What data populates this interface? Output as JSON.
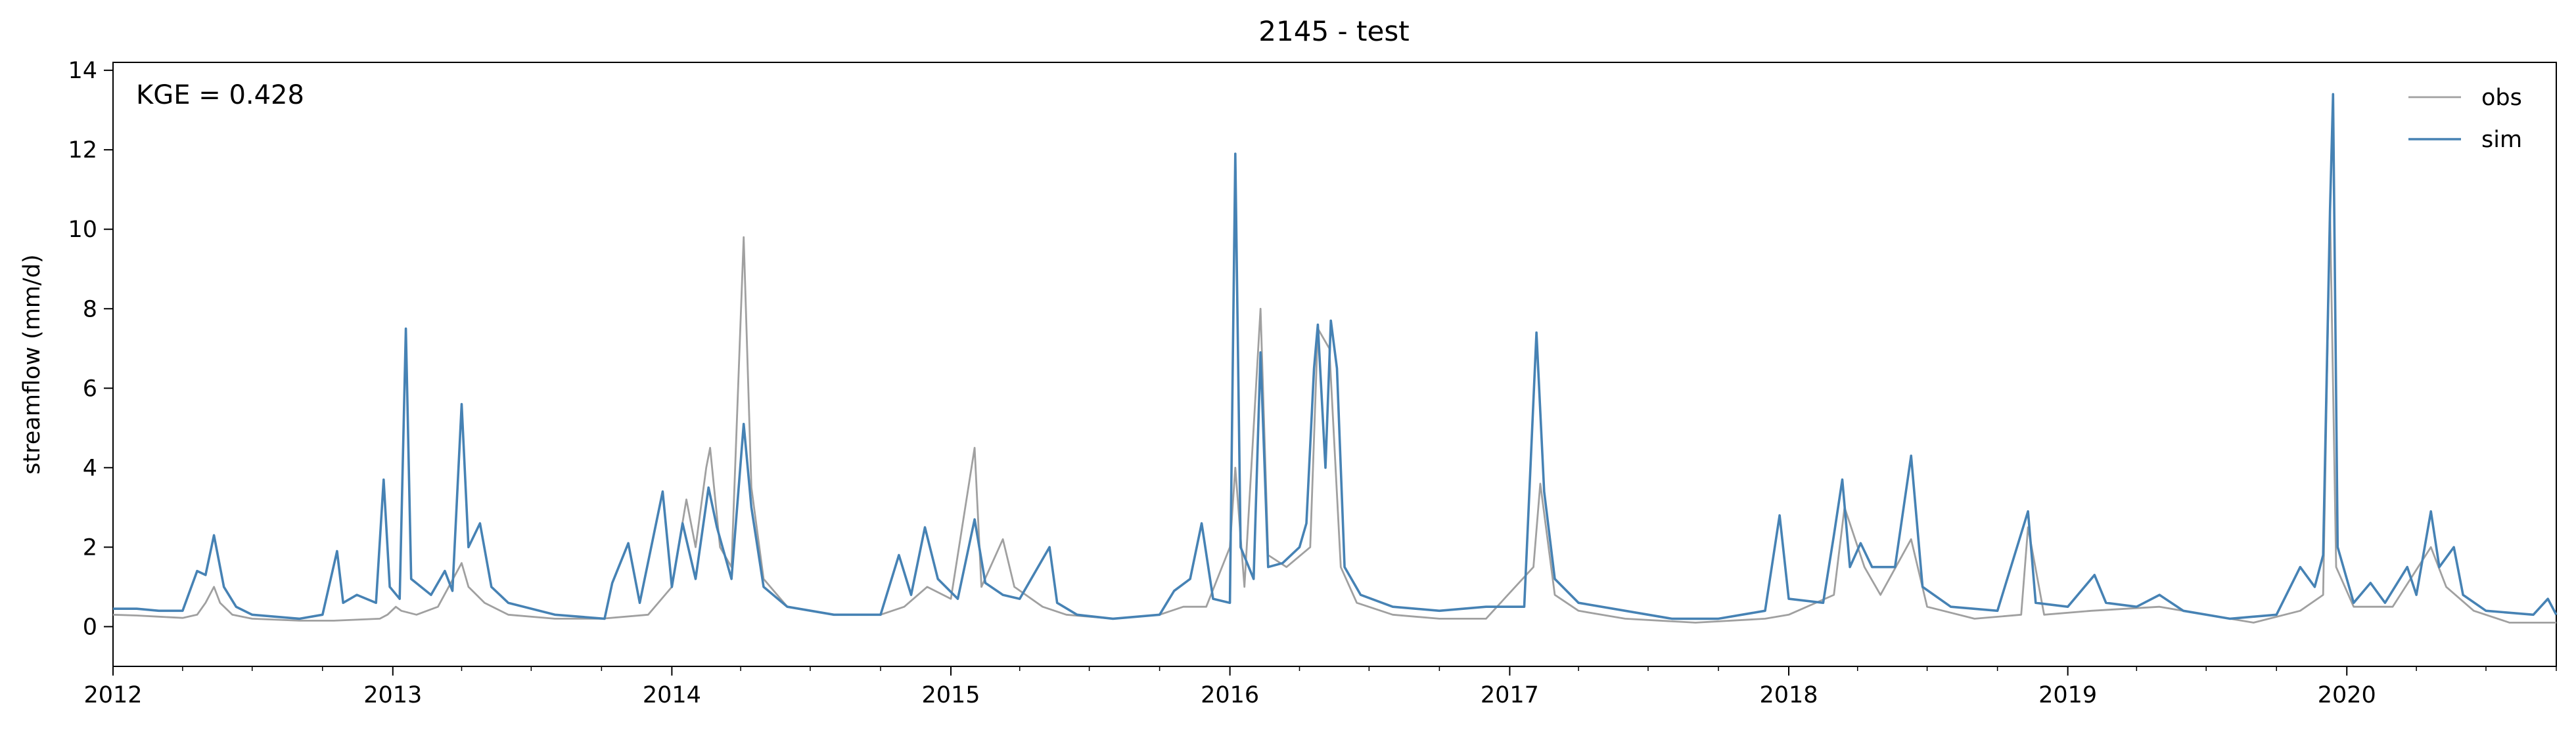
{
  "chart_data": {
    "type": "line",
    "title": "2145 - test",
    "xlabel": "",
    "ylabel": "streamflow (mm/d)",
    "annotation": "KGE = 0.428",
    "xlim": [
      "2012-01-01",
      "2020-10-01"
    ],
    "ylim": [
      -1,
      14.2
    ],
    "x_ticks": [
      "2012",
      "2013",
      "2014",
      "2015",
      "2016",
      "2017",
      "2018",
      "2019",
      "2020"
    ],
    "y_ticks": [
      "0",
      "2",
      "4",
      "6",
      "8",
      "10",
      "12",
      "14"
    ],
    "grid": false,
    "legend": {
      "location": "top-right",
      "entries": [
        "obs",
        "sim"
      ]
    },
    "series": [
      {
        "name": "obs",
        "color": "#a0a0a0",
        "points": [
          [
            "2012-01-01",
            0.3
          ],
          [
            "2012-02-01",
            0.28
          ],
          [
            "2012-03-01",
            0.25
          ],
          [
            "2012-04-01",
            0.22
          ],
          [
            "2012-04-20",
            0.3
          ],
          [
            "2012-05-01",
            0.6
          ],
          [
            "2012-05-12",
            1.0
          ],
          [
            "2012-05-20",
            0.6
          ],
          [
            "2012-06-05",
            0.3
          ],
          [
            "2012-07-01",
            0.2
          ],
          [
            "2012-09-01",
            0.15
          ],
          [
            "2012-10-15",
            0.15
          ],
          [
            "2012-12-15",
            0.2
          ],
          [
            "2012-12-25",
            0.3
          ],
          [
            "2013-01-05",
            0.5
          ],
          [
            "2013-01-12",
            0.4
          ],
          [
            "2013-02-01",
            0.3
          ],
          [
            "2013-03-01",
            0.5
          ],
          [
            "2013-04-01",
            1.6
          ],
          [
            "2013-04-10",
            1.0
          ],
          [
            "2013-05-01",
            0.6
          ],
          [
            "2013-06-01",
            0.3
          ],
          [
            "2013-08-01",
            0.2
          ],
          [
            "2013-10-01",
            0.2
          ],
          [
            "2013-12-01",
            0.3
          ],
          [
            "2014-01-01",
            1.0
          ],
          [
            "2014-01-20",
            3.2
          ],
          [
            "2014-02-01",
            2.0
          ],
          [
            "2014-02-15",
            4.0
          ],
          [
            "2014-02-20",
            4.5
          ],
          [
            "2014-03-05",
            2.0
          ],
          [
            "2014-03-20",
            1.5
          ],
          [
            "2014-04-05",
            9.8
          ],
          [
            "2014-04-15",
            3.5
          ],
          [
            "2014-05-01",
            1.2
          ],
          [
            "2014-06-01",
            0.5
          ],
          [
            "2014-08-01",
            0.3
          ],
          [
            "2014-10-01",
            0.3
          ],
          [
            "2014-11-01",
            0.5
          ],
          [
            "2014-12-01",
            1.0
          ],
          [
            "2015-01-01",
            0.7
          ],
          [
            "2015-02-01",
            4.5
          ],
          [
            "2015-02-10",
            1.0
          ],
          [
            "2015-03-10",
            2.2
          ],
          [
            "2015-03-25",
            1.0
          ],
          [
            "2015-05-01",
            0.5
          ],
          [
            "2015-06-01",
            0.3
          ],
          [
            "2015-08-01",
            0.2
          ],
          [
            "2015-10-01",
            0.3
          ],
          [
            "2015-11-01",
            0.5
          ],
          [
            "2015-12-01",
            0.5
          ],
          [
            "2016-01-01",
            2.0
          ],
          [
            "2016-01-08",
            4.0
          ],
          [
            "2016-01-20",
            1.0
          ],
          [
            "2016-02-10",
            8.0
          ],
          [
            "2016-02-20",
            1.8
          ],
          [
            "2016-03-15",
            1.5
          ],
          [
            "2016-04-15",
            2.0
          ],
          [
            "2016-04-25",
            7.5
          ],
          [
            "2016-05-10",
            7.0
          ],
          [
            "2016-05-25",
            1.5
          ],
          [
            "2016-06-15",
            0.6
          ],
          [
            "2016-08-01",
            0.3
          ],
          [
            "2016-10-01",
            0.2
          ],
          [
            "2016-12-01",
            0.2
          ],
          [
            "2017-02-01",
            1.5
          ],
          [
            "2017-02-10",
            3.6
          ],
          [
            "2017-03-01",
            0.8
          ],
          [
            "2017-04-01",
            0.4
          ],
          [
            "2017-06-01",
            0.2
          ],
          [
            "2017-09-01",
            0.1
          ],
          [
            "2017-12-01",
            0.2
          ],
          [
            "2018-01-01",
            0.3
          ],
          [
            "2018-03-01",
            0.8
          ],
          [
            "2018-03-15",
            3.0
          ],
          [
            "2018-04-10",
            1.5
          ],
          [
            "2018-05-01",
            0.8
          ],
          [
            "2018-06-10",
            2.2
          ],
          [
            "2018-07-01",
            0.5
          ],
          [
            "2018-09-01",
            0.2
          ],
          [
            "2018-11-01",
            0.3
          ],
          [
            "2018-11-10",
            2.5
          ],
          [
            "2018-12-01",
            0.3
          ],
          [
            "2019-02-01",
            0.4
          ],
          [
            "2019-05-01",
            0.5
          ],
          [
            "2019-07-01",
            0.3
          ],
          [
            "2019-09-01",
            0.1
          ],
          [
            "2019-11-01",
            0.4
          ],
          [
            "2019-12-01",
            0.8
          ],
          [
            "2019-12-10",
            10.5
          ],
          [
            "2019-12-18",
            1.5
          ],
          [
            "2020-01-10",
            0.5
          ],
          [
            "2020-03-01",
            0.5
          ],
          [
            "2020-04-20",
            2.0
          ],
          [
            "2020-05-10",
            1.0
          ],
          [
            "2020-06-15",
            0.4
          ],
          [
            "2020-08-01",
            0.1
          ],
          [
            "2020-10-01",
            0.1
          ]
        ]
      },
      {
        "name": "sim",
        "color": "#4682b4",
        "points": [
          [
            "2012-01-01",
            0.45
          ],
          [
            "2012-02-01",
            0.45
          ],
          [
            "2012-03-01",
            0.4
          ],
          [
            "2012-04-01",
            0.4
          ],
          [
            "2012-04-20",
            1.4
          ],
          [
            "2012-05-01",
            1.3
          ],
          [
            "2012-05-12",
            2.3
          ],
          [
            "2012-05-25",
            1.0
          ],
          [
            "2012-06-10",
            0.5
          ],
          [
            "2012-07-01",
            0.3
          ],
          [
            "2012-09-01",
            0.2
          ],
          [
            "2012-10-01",
            0.3
          ],
          [
            "2012-10-20",
            1.9
          ],
          [
            "2012-10-28",
            0.6
          ],
          [
            "2012-11-15",
            0.8
          ],
          [
            "2012-12-10",
            0.6
          ],
          [
            "2012-12-20",
            3.7
          ],
          [
            "2012-12-28",
            1.0
          ],
          [
            "2013-01-10",
            0.7
          ],
          [
            "2013-01-18",
            7.5
          ],
          [
            "2013-01-25",
            1.2
          ],
          [
            "2013-02-20",
            0.8
          ],
          [
            "2013-03-10",
            1.4
          ],
          [
            "2013-03-20",
            0.9
          ],
          [
            "2013-04-01",
            5.6
          ],
          [
            "2013-04-10",
            2.0
          ],
          [
            "2013-04-25",
            2.6
          ],
          [
            "2013-05-10",
            1.0
          ],
          [
            "2013-06-01",
            0.6
          ],
          [
            "2013-08-01",
            0.3
          ],
          [
            "2013-10-05",
            0.2
          ],
          [
            "2013-10-15",
            1.1
          ],
          [
            "2013-11-05",
            2.1
          ],
          [
            "2013-11-20",
            0.6
          ],
          [
            "2013-12-20",
            3.4
          ],
          [
            "2014-01-01",
            1.0
          ],
          [
            "2014-01-15",
            2.6
          ],
          [
            "2014-02-01",
            1.2
          ],
          [
            "2014-02-18",
            3.5
          ],
          [
            "2014-03-01",
            2.5
          ],
          [
            "2014-03-20",
            1.2
          ],
          [
            "2014-04-05",
            5.1
          ],
          [
            "2014-04-15",
            3.0
          ],
          [
            "2014-05-01",
            1.0
          ],
          [
            "2014-06-01",
            0.5
          ],
          [
            "2014-08-01",
            0.3
          ],
          [
            "2014-10-01",
            0.3
          ],
          [
            "2014-10-25",
            1.8
          ],
          [
            "2014-11-10",
            0.8
          ],
          [
            "2014-11-28",
            2.5
          ],
          [
            "2014-12-15",
            1.2
          ],
          [
            "2015-01-10",
            0.7
          ],
          [
            "2015-02-01",
            2.7
          ],
          [
            "2015-02-15",
            1.1
          ],
          [
            "2015-03-10",
            0.8
          ],
          [
            "2015-04-01",
            0.7
          ],
          [
            "2015-05-10",
            2.0
          ],
          [
            "2015-05-20",
            0.6
          ],
          [
            "2015-06-15",
            0.3
          ],
          [
            "2015-08-01",
            0.2
          ],
          [
            "2015-10-01",
            0.3
          ],
          [
            "2015-10-20",
            0.9
          ],
          [
            "2015-11-10",
            1.2
          ],
          [
            "2015-11-25",
            2.6
          ],
          [
            "2015-12-10",
            0.7
          ],
          [
            "2016-01-01",
            0.6
          ],
          [
            "2016-01-08",
            11.9
          ],
          [
            "2016-01-15",
            2.0
          ],
          [
            "2016-02-01",
            1.2
          ],
          [
            "2016-02-10",
            6.9
          ],
          [
            "2016-02-20",
            1.5
          ],
          [
            "2016-03-10",
            1.6
          ],
          [
            "2016-04-01",
            2.0
          ],
          [
            "2016-04-10",
            2.6
          ],
          [
            "2016-04-20",
            6.5
          ],
          [
            "2016-04-25",
            7.6
          ],
          [
            "2016-05-05",
            4.0
          ],
          [
            "2016-05-12",
            7.7
          ],
          [
            "2016-05-20",
            6.5
          ],
          [
            "2016-05-30",
            1.5
          ],
          [
            "2016-06-20",
            0.8
          ],
          [
            "2016-08-01",
            0.5
          ],
          [
            "2016-10-01",
            0.4
          ],
          [
            "2016-12-01",
            0.5
          ],
          [
            "2017-01-20",
            0.5
          ],
          [
            "2017-02-05",
            7.4
          ],
          [
            "2017-02-15",
            3.4
          ],
          [
            "2017-03-01",
            1.2
          ],
          [
            "2017-04-01",
            0.6
          ],
          [
            "2017-06-01",
            0.4
          ],
          [
            "2017-08-01",
            0.2
          ],
          [
            "2017-10-01",
            0.2
          ],
          [
            "2017-12-01",
            0.4
          ],
          [
            "2017-12-20",
            2.8
          ],
          [
            "2018-01-01",
            0.7
          ],
          [
            "2018-02-15",
            0.6
          ],
          [
            "2018-03-01",
            2.3
          ],
          [
            "2018-03-12",
            3.7
          ],
          [
            "2018-03-22",
            1.5
          ],
          [
            "2018-04-05",
            2.1
          ],
          [
            "2018-04-20",
            1.5
          ],
          [
            "2018-05-20",
            1.5
          ],
          [
            "2018-06-10",
            4.3
          ],
          [
            "2018-06-25",
            1.0
          ],
          [
            "2018-08-01",
            0.5
          ],
          [
            "2018-10-01",
            0.4
          ],
          [
            "2018-11-10",
            2.9
          ],
          [
            "2018-11-20",
            0.6
          ],
          [
            "2019-01-01",
            0.5
          ],
          [
            "2019-02-05",
            1.3
          ],
          [
            "2019-02-20",
            0.6
          ],
          [
            "2019-04-01",
            0.5
          ],
          [
            "2019-05-01",
            0.8
          ],
          [
            "2019-06-01",
            0.4
          ],
          [
            "2019-08-01",
            0.2
          ],
          [
            "2019-10-01",
            0.3
          ],
          [
            "2019-11-01",
            1.5
          ],
          [
            "2019-11-20",
            1.0
          ],
          [
            "2019-12-01",
            1.8
          ],
          [
            "2019-12-10",
            10.5
          ],
          [
            "2019-12-14",
            13.4
          ],
          [
            "2019-12-20",
            2.0
          ],
          [
            "2020-01-10",
            0.6
          ],
          [
            "2020-02-01",
            1.1
          ],
          [
            "2020-02-20",
            0.6
          ],
          [
            "2020-03-20",
            1.5
          ],
          [
            "2020-04-01",
            0.8
          ],
          [
            "2020-04-20",
            2.9
          ],
          [
            "2020-05-01",
            1.5
          ],
          [
            "2020-05-20",
            2.0
          ],
          [
            "2020-06-01",
            0.8
          ],
          [
            "2020-07-01",
            0.4
          ],
          [
            "2020-09-01",
            0.3
          ],
          [
            "2020-09-20",
            0.7
          ],
          [
            "2020-10-01",
            0.3
          ]
        ]
      }
    ]
  }
}
